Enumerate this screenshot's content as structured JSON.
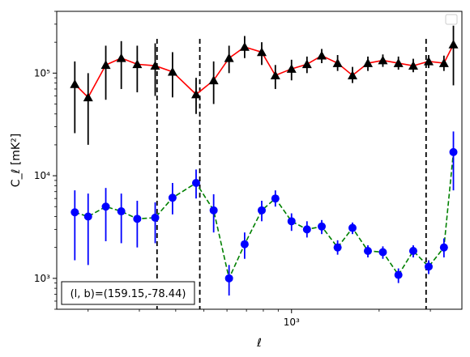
{
  "chart_data": {
    "type": "scatter",
    "title": "",
    "xlabel": "ℓ",
    "ylabel": "C_ℓ  [mK²]",
    "xscale": "log",
    "yscale": "log",
    "xlim": [
      156,
      3850
    ],
    "ylim": [
      500,
      400000
    ],
    "xticks": [
      {
        "value": 1000,
        "label": "10³"
      }
    ],
    "yticks": [
      {
        "value": 1000,
        "label": "10³"
      },
      {
        "value": 10000,
        "label": "10⁴"
      },
      {
        "value": 100000,
        "label": "10⁵"
      }
    ],
    "grid": false,
    "legend_placement": "top-right",
    "annotation": "(l, b)=(159.15,-78.44)",
    "vlines": [
      345,
      484,
      2900
    ],
    "series": [
      {
        "marker": "triangle",
        "marker_color": "#000000",
        "line_color": "#ff0000",
        "line_style": "solid",
        "errorbar_color": "#000000",
        "points": [
          {
            "x": 180,
            "y": 78000,
            "lo": 26000,
            "hi": 130000
          },
          {
            "x": 200,
            "y": 58000,
            "lo": 20000,
            "hi": 100000
          },
          {
            "x": 230,
            "y": 120000,
            "lo": 55000,
            "hi": 185000
          },
          {
            "x": 260,
            "y": 140000,
            "lo": 70000,
            "hi": 205000
          },
          {
            "x": 295,
            "y": 122000,
            "lo": 65000,
            "hi": 185000
          },
          {
            "x": 340,
            "y": 118000,
            "lo": 60000,
            "hi": 195000
          },
          {
            "x": 390,
            "y": 103000,
            "lo": 58000,
            "hi": 160000
          },
          {
            "x": 470,
            "y": 62000,
            "lo": 40000,
            "hi": 90000
          },
          {
            "x": 540,
            "y": 85000,
            "lo": 50000,
            "hi": 130000
          },
          {
            "x": 610,
            "y": 140000,
            "lo": 100000,
            "hi": 185000
          },
          {
            "x": 690,
            "y": 180000,
            "lo": 140000,
            "hi": 230000
          },
          {
            "x": 790,
            "y": 160000,
            "lo": 120000,
            "hi": 200000
          },
          {
            "x": 880,
            "y": 95000,
            "lo": 70000,
            "hi": 120000
          },
          {
            "x": 1000,
            "y": 110000,
            "lo": 85000,
            "hi": 135000
          },
          {
            "x": 1130,
            "y": 122000,
            "lo": 100000,
            "hi": 145000
          },
          {
            "x": 1270,
            "y": 148000,
            "lo": 125000,
            "hi": 172000
          },
          {
            "x": 1440,
            "y": 125000,
            "lo": 105000,
            "hi": 150000
          },
          {
            "x": 1620,
            "y": 95000,
            "lo": 80000,
            "hi": 115000
          },
          {
            "x": 1830,
            "y": 125000,
            "lo": 105000,
            "hi": 145000
          },
          {
            "x": 2060,
            "y": 133000,
            "lo": 115000,
            "hi": 152000
          },
          {
            "x": 2330,
            "y": 125000,
            "lo": 108000,
            "hi": 145000
          },
          {
            "x": 2620,
            "y": 118000,
            "lo": 102000,
            "hi": 138000
          },
          {
            "x": 2960,
            "y": 130000,
            "lo": 112000,
            "hi": 150000
          },
          {
            "x": 3340,
            "y": 125000,
            "lo": 105000,
            "hi": 148000
          },
          {
            "x": 3600,
            "y": 190000,
            "lo": 76000,
            "hi": 290000
          }
        ]
      },
      {
        "marker": "circle",
        "marker_color": "#0000ff",
        "line_color": "#008000",
        "line_style": "dashed",
        "errorbar_color": "#0000ff",
        "points": [
          {
            "x": 180,
            "y": 4400,
            "lo": 1500,
            "hi": 7200
          },
          {
            "x": 200,
            "y": 4000,
            "lo": 1350,
            "hi": 6700
          },
          {
            "x": 230,
            "y": 5000,
            "lo": 2300,
            "hi": 7600
          },
          {
            "x": 260,
            "y": 4500,
            "lo": 2200,
            "hi": 6700
          },
          {
            "x": 295,
            "y": 3800,
            "lo": 2000,
            "hi": 5700
          },
          {
            "x": 340,
            "y": 3900,
            "lo": 2200,
            "hi": 5500
          },
          {
            "x": 390,
            "y": 6100,
            "lo": 4200,
            "hi": 8500
          },
          {
            "x": 470,
            "y": 8500,
            "lo": 6000,
            "hi": 11500
          },
          {
            "x": 540,
            "y": 4600,
            "lo": 2800,
            "hi": 6600
          },
          {
            "x": 610,
            "y": 1000,
            "lo": 680,
            "hi": 1350
          },
          {
            "x": 690,
            "y": 2150,
            "lo": 1550,
            "hi": 2800
          },
          {
            "x": 790,
            "y": 4600,
            "lo": 3600,
            "hi": 5700
          },
          {
            "x": 880,
            "y": 6000,
            "lo": 5000,
            "hi": 7200
          },
          {
            "x": 1000,
            "y": 3600,
            "lo": 2900,
            "hi": 4300
          },
          {
            "x": 1130,
            "y": 3000,
            "lo": 2500,
            "hi": 3600
          },
          {
            "x": 1270,
            "y": 3200,
            "lo": 2700,
            "hi": 3700
          },
          {
            "x": 1440,
            "y": 2000,
            "lo": 1700,
            "hi": 2350
          },
          {
            "x": 1620,
            "y": 3100,
            "lo": 2700,
            "hi": 3500
          },
          {
            "x": 1830,
            "y": 1850,
            "lo": 1600,
            "hi": 2100
          },
          {
            "x": 2060,
            "y": 1800,
            "lo": 1550,
            "hi": 2050
          },
          {
            "x": 2330,
            "y": 1080,
            "lo": 900,
            "hi": 1250
          },
          {
            "x": 2620,
            "y": 1850,
            "lo": 1600,
            "hi": 2100
          },
          {
            "x": 2960,
            "y": 1300,
            "lo": 1100,
            "hi": 1500
          },
          {
            "x": 3340,
            "y": 2000,
            "lo": 1600,
            "hi": 2450
          },
          {
            "x": 3600,
            "y": 17000,
            "lo": 7200,
            "hi": 27000
          }
        ]
      }
    ]
  }
}
